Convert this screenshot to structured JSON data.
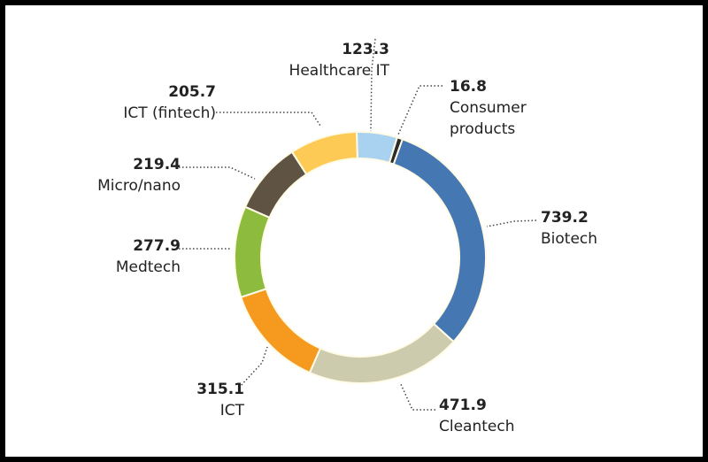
{
  "chart_data": {
    "type": "pie",
    "variant": "donut",
    "start_angle_deg": -1.6,
    "direction": "clockwise",
    "slices": [
      {
        "label": "Healthcare IT",
        "value": 123.3,
        "value_text": "123.3",
        "color": "#a8d2f0"
      },
      {
        "label": "Consumer products",
        "value": 16.8,
        "value_text": "16.8",
        "color": "#2b2b2b"
      },
      {
        "label": "Biotech",
        "value": 739.2,
        "value_text": "739.2",
        "color": "#4577b2"
      },
      {
        "label": "Cleantech",
        "value": 471.9,
        "value_text": "471.9",
        "color": "#cdcbae"
      },
      {
        "label": "ICT",
        "value": 315.1,
        "value_text": "315.1",
        "color": "#f5991f"
      },
      {
        "label": "Medtech",
        "value": 277.9,
        "value_text": "277.9",
        "color": "#8cbb3e"
      },
      {
        "label": "Micro/nano",
        "value": 219.4,
        "value_text": "219.4",
        "color": "#5f5443"
      },
      {
        "label": "ICT (fintech)",
        "value": 205.7,
        "value_text": "205.7",
        "color": "#fdcb55"
      }
    ],
    "legend": "none"
  }
}
